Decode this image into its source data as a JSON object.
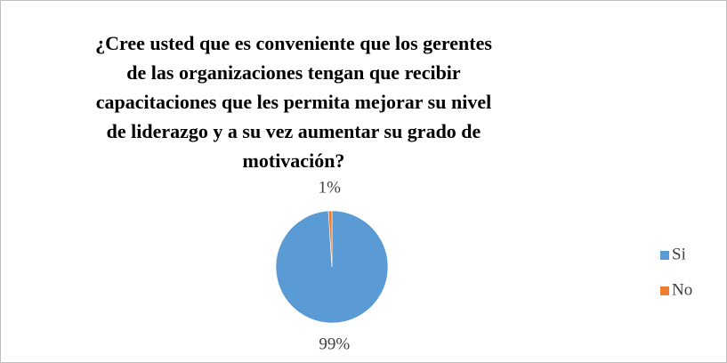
{
  "chart_data": {
    "type": "pie",
    "title": "¿Cree usted que es conveniente que los gerentes de las organizaciones tengan que recibir capacitaciones que les permita mejorar su nivel de liderazgo y a su vez aumentar su grado de motivación?",
    "categories": [
      "Si",
      "No"
    ],
    "values": [
      99,
      1
    ],
    "value_labels": [
      "99%",
      "1%"
    ],
    "colors": [
      "#5b9bd5",
      "#ed7d31"
    ],
    "legend": "right"
  }
}
